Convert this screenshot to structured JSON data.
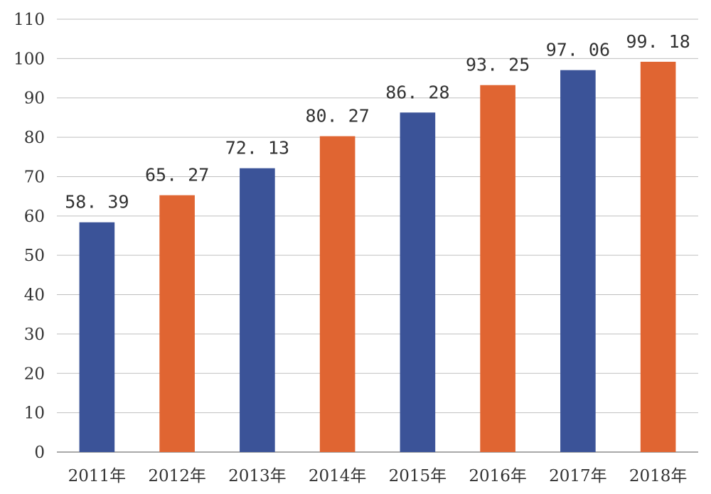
{
  "chart_data": {
    "type": "bar",
    "title": "",
    "xlabel": "",
    "ylabel": "",
    "categories": [
      "2011年",
      "2012年",
      "2013年",
      "2014年",
      "2015年",
      "2016年",
      "2017年",
      "2018年"
    ],
    "values": [
      58.39,
      65.27,
      72.13,
      80.27,
      86.28,
      93.25,
      97.06,
      99.18
    ],
    "value_labels": [
      "58. 39",
      "65. 27",
      "72. 13",
      "80. 27",
      "86. 28",
      "93. 25",
      "97. 06",
      "99. 18"
    ],
    "ylim": [
      0,
      110
    ],
    "yticks": [
      0,
      10,
      20,
      30,
      40,
      50,
      60,
      70,
      80,
      90,
      100,
      110
    ],
    "grid": true,
    "legend": "none",
    "colors": [
      "#3b5398",
      "#e06532"
    ]
  }
}
